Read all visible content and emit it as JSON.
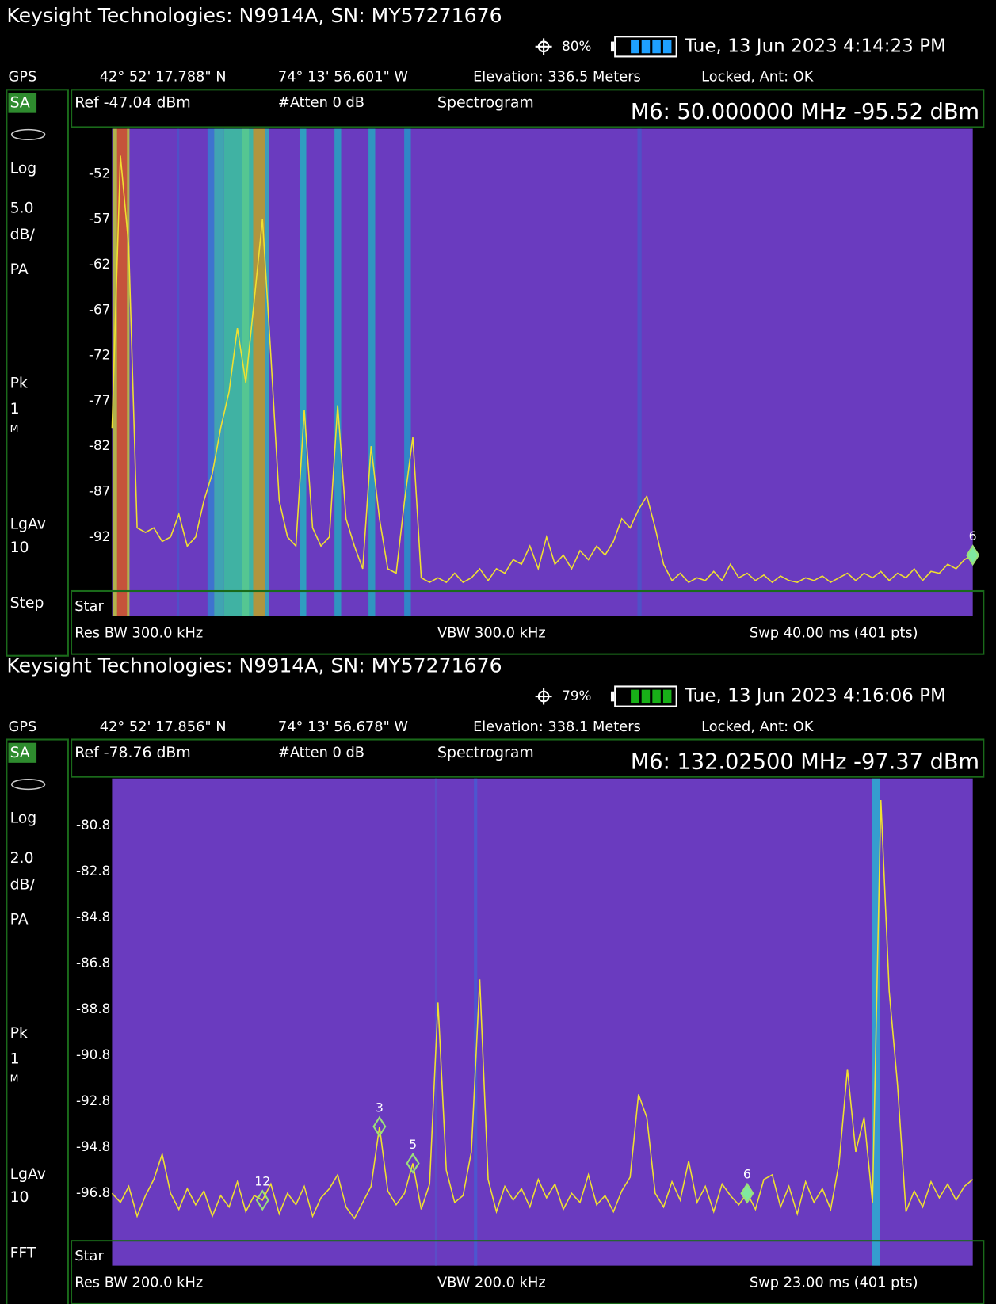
{
  "panels": [
    {
      "title": "Keysight Technologies: N9914A, SN: MY57271676",
      "battery": "80%",
      "datetime": "Tue, 13 Jun 2023 4:14:23 PM",
      "gps": {
        "label": "GPS",
        "lat": "42° 52' 17.788\" N",
        "lon": "74° 13' 56.601\" W",
        "elevation": "Elevation: 336.5 Meters",
        "status": "Locked, Ant: OK"
      },
      "sidebar": [
        "SA",
        "Log",
        "5.0",
        "dB/",
        "PA",
        "Pk",
        "1",
        "M",
        "LgAv",
        "10",
        "Step"
      ],
      "header": {
        "ref": "Ref -47.04 dBm",
        "atten": "#Atten 0 dB",
        "mode": "Spectrogram",
        "marker": "M6:  50.000000 MHz  -95.52 dBm"
      },
      "ylim": [
        -97.04,
        -47.04
      ],
      "yticks": [
        -52,
        -57,
        -62,
        -67,
        -72,
        -77,
        -82,
        -87,
        -92
      ],
      "trace": [
        -80,
        -50,
        -60,
        -91,
        -91.5,
        -91,
        -92.5,
        -92,
        -89.5,
        -93,
        -92,
        -88,
        -85,
        -80,
        -76,
        -69,
        -75,
        -66,
        -57,
        -72,
        -88,
        -92,
        -93,
        -78,
        -91,
        -93,
        -92,
        -77.5,
        -90,
        -93,
        -95.5,
        -82,
        -90,
        -95.5,
        -96,
        -88,
        -81,
        -96.5,
        -97,
        -96.5,
        -97,
        -96,
        -97,
        -96.5,
        -95.5,
        -96.8,
        -95.5,
        -96,
        -94.5,
        -95,
        -93,
        -95.5,
        -92,
        -95,
        -94,
        -95.5,
        -93.5,
        -94.5,
        -93,
        -94,
        -92.5,
        -90,
        -91,
        -89,
        -87.5,
        -91,
        -95,
        -96.8,
        -96,
        -97,
        -96.5,
        -96.8,
        -95.8,
        -96.8,
        -95,
        -96.5,
        -96,
        -96.8,
        -96.2,
        -97,
        -96.3,
        -96.8,
        -97,
        -96.5,
        -96.8,
        -96.3,
        -97,
        -96.5,
        -96,
        -96.8,
        -96,
        -96.5,
        -95.8,
        -96.8,
        -96,
        -96.5,
        -95.5,
        -96.8,
        -95.8,
        -96,
        -95,
        -95.5,
        -94.5,
        -94
      ],
      "markers": [
        "6"
      ],
      "start": "Star",
      "footer": [
        "Res BW 300.0 kHz",
        "VBW 300.0 kHz",
        "Swp 40.00 ms (401 pts)"
      ]
    },
    {
      "title": "Keysight Technologies: N9914A, SN: MY57271676",
      "battery": "79%",
      "datetime": "Tue, 13 Jun 2023 4:16:06 PM",
      "gps": {
        "label": "GPS",
        "lat": "42° 52' 17.856\" N",
        "lon": "74° 13' 56.678\" W",
        "elevation": "Elevation: 338.1 Meters",
        "status": "Locked, Ant: OK"
      },
      "sidebar": [
        "SA",
        "Log",
        "2.0",
        "dB/",
        "PA",
        "Pk",
        "1",
        "M",
        "LgAv",
        "10",
        "FFT"
      ],
      "header": {
        "ref": "Ref -78.76 dBm",
        "atten": "#Atten 0 dB",
        "mode": "Spectrogram",
        "marker": "M6:  132.02500 MHz  -97.37 dBm"
      },
      "ylim": [
        -98.76,
        -78.76
      ],
      "yticks": [
        -80.8,
        -82.8,
        -84.8,
        -86.8,
        -88.8,
        -90.8,
        -92.8,
        -94.8,
        -96.8
      ],
      "trace": [
        -96.8,
        -97.2,
        -96.5,
        -97.8,
        -96.9,
        -96.2,
        -95.1,
        -96.8,
        -97.5,
        -96.6,
        -97.3,
        -96.7,
        -97.8,
        -96.9,
        -97.4,
        -96.3,
        -97.6,
        -96.9,
        -97.1,
        -96.4,
        -97.7,
        -96.8,
        -97.3,
        -96.5,
        -97.8,
        -97.0,
        -96.6,
        -96.0,
        -97.4,
        -97.9,
        -97.2,
        -96.5,
        -93.9,
        -96.7,
        -97.3,
        -96.8,
        -95.5,
        -97.5,
        -96.4,
        -88.5,
        -95.8,
        -97.2,
        -96.9,
        -95.0,
        -87.5,
        -96.2,
        -97.6,
        -96.5,
        -97.1,
        -96.6,
        -97.4,
        -96.2,
        -97.0,
        -96.4,
        -97.5,
        -96.8,
        -97.2,
        -96.0,
        -97.3,
        -96.9,
        -97.6,
        -96.7,
        -96.1,
        -92.5,
        -93.5,
        -96.8,
        -97.4,
        -96.3,
        -97.1,
        -95.4,
        -97.2,
        -96.5,
        -97.6,
        -96.4,
        -96.9,
        -97.3,
        -96.8,
        -97.5,
        -96.2,
        -96.0,
        -97.4,
        -96.5,
        -97.7,
        -96.3,
        -97.2,
        -96.6,
        -97.5,
        -95.5,
        -91.4,
        -95.0,
        -93.5,
        -97.2,
        -79.7,
        -88.0,
        -92.1,
        -97.6,
        -96.7,
        -97.4,
        -96.3,
        -97.0,
        -96.4,
        -97.1,
        -96.5,
        -96.2
      ],
      "markers": [
        "12",
        "3",
        "5",
        "6"
      ],
      "start": "Star",
      "footer": [
        "Res BW 200.0 kHz",
        "VBW 200.0 kHz",
        "Swp 23.00 ms (401 pts)"
      ]
    }
  ]
}
